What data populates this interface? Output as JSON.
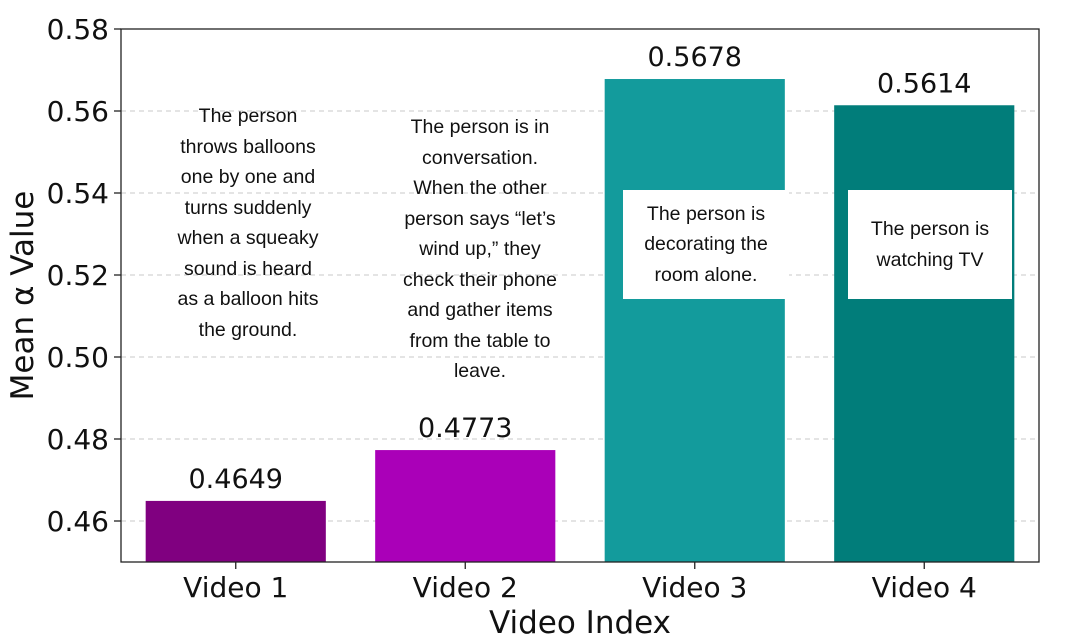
{
  "chart_data": {
    "type": "bar",
    "title": "",
    "xlabel": "Video Index",
    "ylabel": "Mean α Value",
    "categories": [
      "Video 1",
      "Video 2",
      "Video 3",
      "Video 4"
    ],
    "values": [
      0.4649,
      0.4773,
      0.5678,
      0.5614
    ],
    "value_labels": [
      "0.4649",
      "0.4773",
      "0.5678",
      "0.5614"
    ],
    "ylim": [
      0.45,
      0.58
    ],
    "yticks": [
      0.46,
      0.48,
      0.5,
      0.52,
      0.54,
      0.56,
      0.58
    ],
    "ytick_labels": [
      "0.46",
      "0.48",
      "0.50",
      "0.52",
      "0.54",
      "0.56",
      "0.58"
    ],
    "grid": "horizontal dashed",
    "colors": [
      "#800080",
      "#aa00b8",
      "#139b9c",
      "#017d7a"
    ],
    "annotations": [
      "The person\nthrows balloons\none by one and\nturns suddenly\nwhen a squeaky\nsound is heard\nas a balloon hits\nthe ground.",
      "The person is in\nconversation.\nWhen the other\nperson says “let’s\nwind up,” they\ncheck their phone\nand gather items\nfrom the table to\nleave.",
      "The person is\ndecorating the\nroom alone.",
      "The person is\nwatching TV"
    ]
  }
}
